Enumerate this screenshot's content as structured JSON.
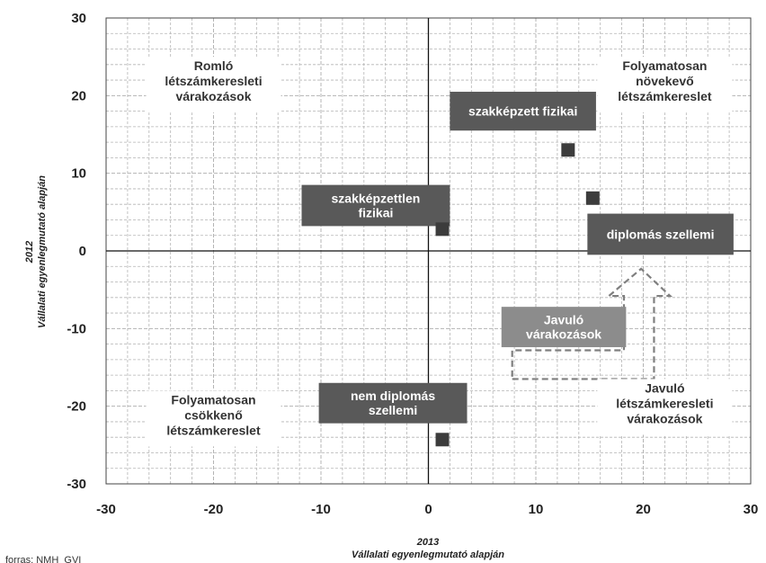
{
  "chart_data": {
    "type": "scatter",
    "xlabel_year": "2013",
    "xlabel": "Vállalati egyenlegmutató  alapján",
    "ylabel_year": "2012",
    "ylabel": "Vállalati egyenlegmutató  alapján",
    "xlim": [
      -30,
      30
    ],
    "ylim": [
      -30,
      30
    ],
    "xticks": [
      -30,
      -20,
      -10,
      0,
      10,
      20,
      30
    ],
    "yticks": [
      -30,
      -20,
      -10,
      0,
      10,
      20,
      30
    ],
    "grid": true,
    "points": [
      {
        "label": "szakképzett fizikai",
        "x": 13,
        "y": 13
      },
      {
        "label": "diplomás szellemi",
        "x": 15.3,
        "y": 6.8
      },
      {
        "label": "szakképzettlen fizikai",
        "x": 1.3,
        "y": 2.8
      },
      {
        "label": "nem diplomás szellemi",
        "x": 1.3,
        "y": -24.3
      }
    ],
    "quadrant_labels": [
      {
        "lines": [
          "Romló",
          "létszámkeresleti",
          "várakozások"
        ]
      },
      {
        "lines": [
          "Folyamatosan",
          "növekevő",
          "létszámkereslet"
        ]
      },
      {
        "lines": [
          "Folyamatosan",
          "csökkenő",
          "létszámkereslet"
        ]
      },
      {
        "lines": [
          "Javuló",
          "létszámkeresleti",
          "várakozások"
        ]
      }
    ],
    "callouts": [
      {
        "lines": [
          "szakképzett fizikai"
        ]
      },
      {
        "lines": [
          "szakképzettlen",
          "fizikai"
        ]
      },
      {
        "lines": [
          "diplomás szellemi"
        ]
      },
      {
        "lines": [
          "nem diplomás",
          "szellemi"
        ]
      },
      {
        "lines": [
          "Javuló",
          "várakozások"
        ]
      }
    ],
    "colors": {
      "marker": "#3c3c3c",
      "callout": "#595959",
      "callout_light": "#8c8c8c",
      "grid": "#b4b4b4",
      "axis": "#111111",
      "arrow": "#7f7f7f"
    }
  },
  "source": "forras: NMH_GVI"
}
